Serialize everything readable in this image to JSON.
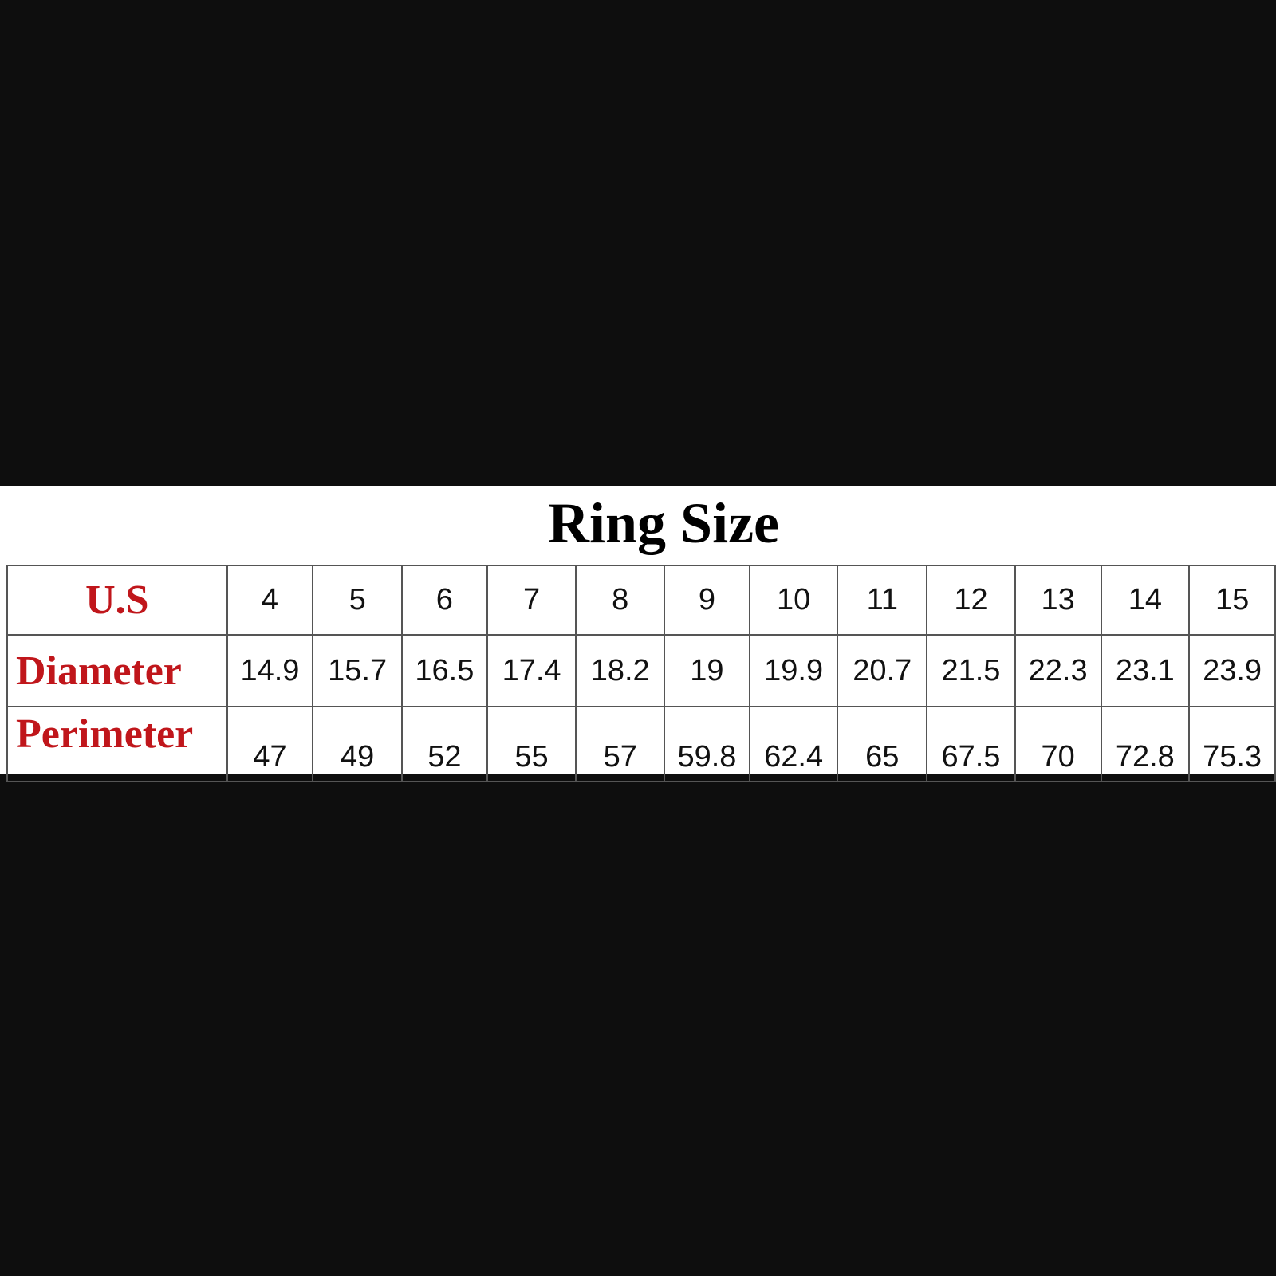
{
  "title": "Ring Size",
  "colors": {
    "header_text": "#c0161b",
    "background": "#0e0e0e"
  },
  "table": {
    "rows": [
      {
        "label": "U.S",
        "values": [
          "4",
          "5",
          "6",
          "7",
          "8",
          "9",
          "10",
          "11",
          "12",
          "13",
          "14",
          "15"
        ]
      },
      {
        "label": "Diameter",
        "values": [
          "14.9",
          "15.7",
          "16.5",
          "17.4",
          "18.2",
          "19",
          "19.9",
          "20.7",
          "21.5",
          "22.3",
          "23.1",
          "23.9"
        ]
      },
      {
        "label": "Perimeter",
        "values": [
          "47",
          "49",
          "52",
          "55",
          "57",
          "59.8",
          "62.4",
          "65",
          "67.5",
          "70",
          "72.8",
          "75.3"
        ]
      }
    ]
  }
}
